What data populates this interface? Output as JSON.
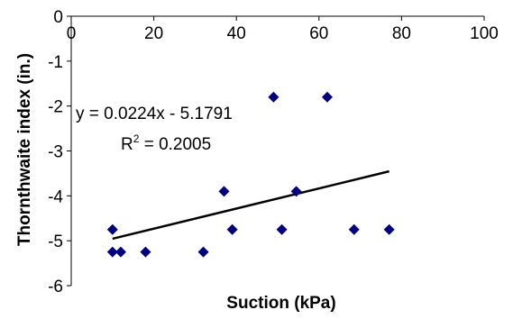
{
  "chart_data": {
    "type": "scatter",
    "xlabel": "Suction (kPa)",
    "ylabel": "Thornthwaite index (in.)",
    "xlim": [
      0,
      100
    ],
    "ylim": [
      -6,
      0
    ],
    "x_ticks": [
      "0",
      "20",
      "40",
      "60",
      "80",
      "100"
    ],
    "y_ticks": [
      "0",
      "-1",
      "-2",
      "-3",
      "-4",
      "-5",
      "-6"
    ],
    "x_tick_values": [
      0,
      20,
      40,
      60,
      80,
      100
    ],
    "y_tick_values": [
      0,
      -1,
      -2,
      -3,
      -4,
      -5,
      -6
    ],
    "marker_color": "#000080",
    "series": [
      {
        "points": [
          {
            "x": 10,
            "y": -4.75
          },
          {
            "x": 10,
            "y": -5.25
          },
          {
            "x": 12,
            "y": -5.25
          },
          {
            "x": 18,
            "y": -5.25
          },
          {
            "x": 32,
            "y": -5.25
          },
          {
            "x": 37,
            "y": -3.9
          },
          {
            "x": 39,
            "y": -4.75
          },
          {
            "x": 49,
            "y": -1.8
          },
          {
            "x": 51,
            "y": -4.75
          },
          {
            "x": 54.5,
            "y": -3.9
          },
          {
            "x": 62,
            "y": -1.8
          },
          {
            "x": 68.5,
            "y": -4.75
          },
          {
            "x": 77,
            "y": -4.75
          }
        ]
      }
    ],
    "trendline": {
      "type": "linear",
      "slope": 0.0224,
      "intercept": -5.1791,
      "x_range": [
        10,
        77
      ],
      "color": "#000000"
    },
    "annotations": {
      "equation": "y = 0.0224x - 5.1791",
      "r2_label": "R",
      "r2_sup": "2",
      "r2_value": " = 0.2005"
    },
    "grid": false,
    "legend": "none"
  }
}
